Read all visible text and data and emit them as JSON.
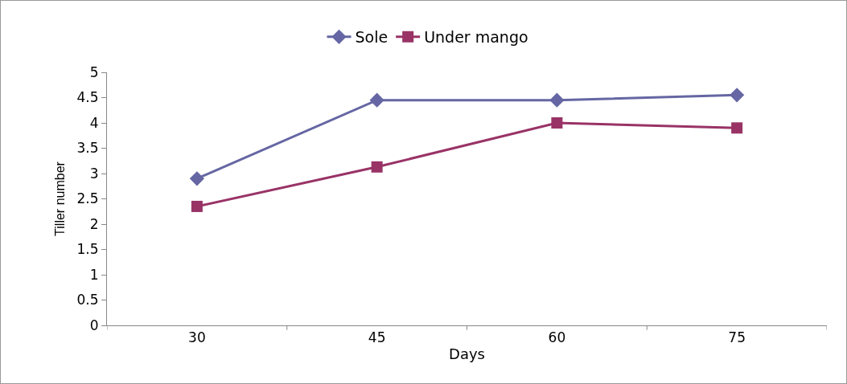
{
  "chart_data": {
    "type": "line",
    "xlabel": "Days",
    "ylabel": "Tiller number",
    "categories": [
      "30",
      "45",
      "60",
      "75"
    ],
    "series": [
      {
        "name": "Sole",
        "color": "#6566a3",
        "marker": "diamond",
        "values": [
          2.9,
          4.45,
          4.45,
          4.55
        ]
      },
      {
        "name": "Under mango",
        "color": "#993366",
        "marker": "square",
        "values": [
          2.35,
          3.13,
          4.0,
          3.9
        ]
      }
    ],
    "ylim": [
      0,
      5
    ],
    "yticks": [
      0,
      0.5,
      1,
      1.5,
      2,
      2.5,
      3,
      3.5,
      4,
      4.5,
      5
    ],
    "grid": false,
    "legend": "top",
    "line_style": "solid"
  }
}
